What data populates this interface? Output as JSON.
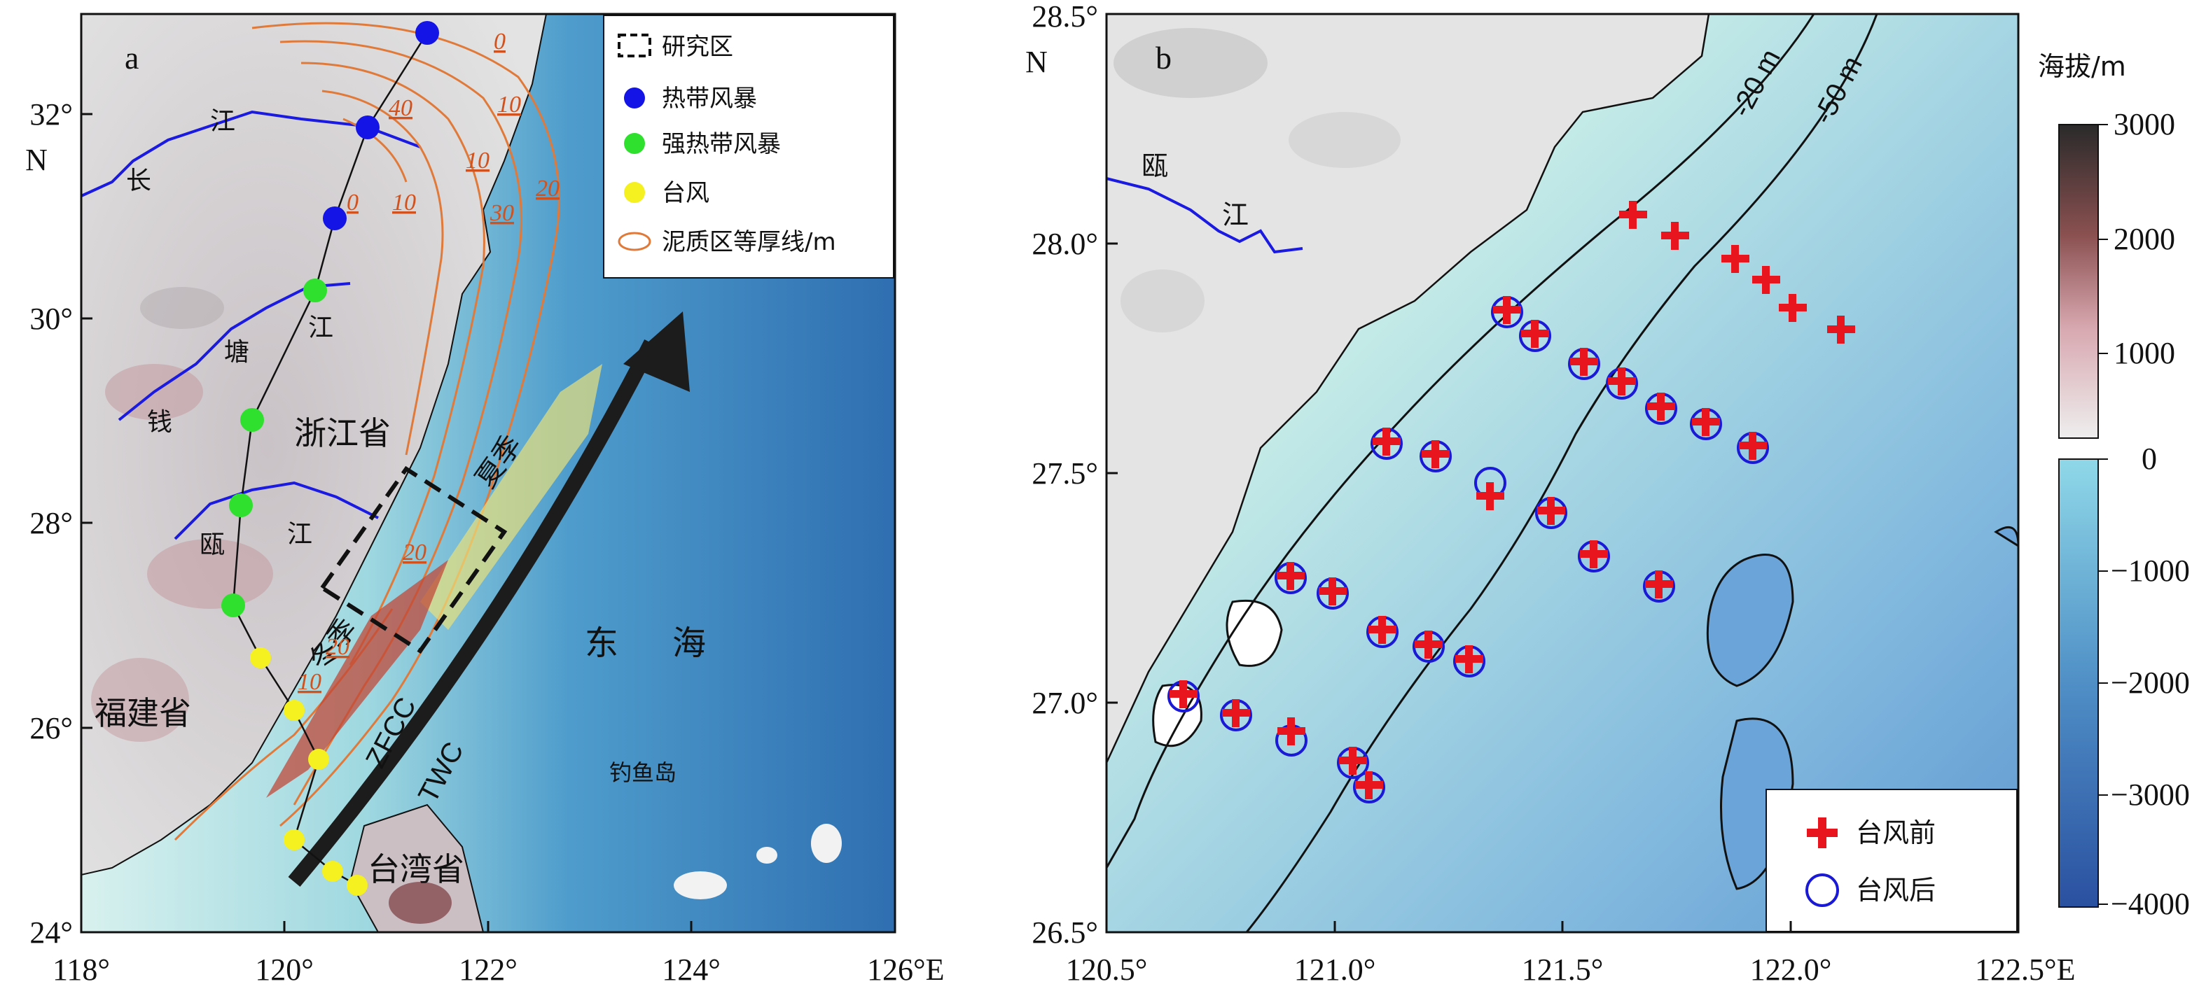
{
  "panel_a": {
    "label": "a",
    "x_ticks": [
      "118°",
      "120°",
      "122°",
      "124°",
      "126°E"
    ],
    "y_ticks": [
      "32°",
      "30°",
      "28°",
      "26°",
      "24°"
    ],
    "y_axis_letter": "N",
    "place_labels": {
      "zhejiang": "浙江省",
      "fujian": "福建省",
      "taiwan": "台湾省",
      "east_sea_1": "东",
      "east_sea_2": "海",
      "diaoyu": "钓鱼岛",
      "changjiang_1": "江",
      "changjiang_2": "长",
      "qiantang_1": "江",
      "qiantang_2": "塘",
      "qiantang_3": "钱",
      "oujiang_1": "瓯",
      "oujiang_2": "江",
      "summer": "夏季",
      "winter": "冬季",
      "zfcc": "ZFCC",
      "twc": "TWC"
    },
    "isopach_labels": [
      "0",
      "10",
      "40",
      "10",
      "0",
      "10",
      "20",
      "30",
      "20",
      "20",
      "10"
    ],
    "legend": {
      "study_area": "研究区",
      "tropical_storm": "热带风暴",
      "severe_tropical_storm": "强热带风暴",
      "typhoon": "台风",
      "isopach": "泥质区等厚线/m"
    },
    "colors": {
      "tropical_storm": "#1414e6",
      "severe_tropical_storm": "#2fe02f",
      "typhoon": "#f5f020",
      "isopach": "#e07a3a",
      "summer_band": "#e8e07a",
      "winter_band": "#c04a3a"
    }
  },
  "panel_b": {
    "label": "b",
    "x_ticks": [
      "120.5°",
      "121.0°",
      "121.5°",
      "122.0°",
      "122.5°E"
    ],
    "y_ticks": [
      "28.5°",
      "28.0°",
      "27.5°",
      "27.0°",
      "26.5°"
    ],
    "y_axis_letter": "N",
    "contour_labels": [
      "-20 m",
      "-50 m"
    ],
    "river_labels": [
      "瓯",
      "江"
    ],
    "legend": {
      "before": "台风前",
      "after": "台风后"
    },
    "colors": {
      "before": "#e8141e",
      "after": "#1a1ad6"
    }
  },
  "colorbar": {
    "title": "海拔/m",
    "ticks": [
      "3000",
      "2000",
      "1000",
      "0",
      "−1000",
      "−2000",
      "−3000",
      "−4000"
    ]
  }
}
